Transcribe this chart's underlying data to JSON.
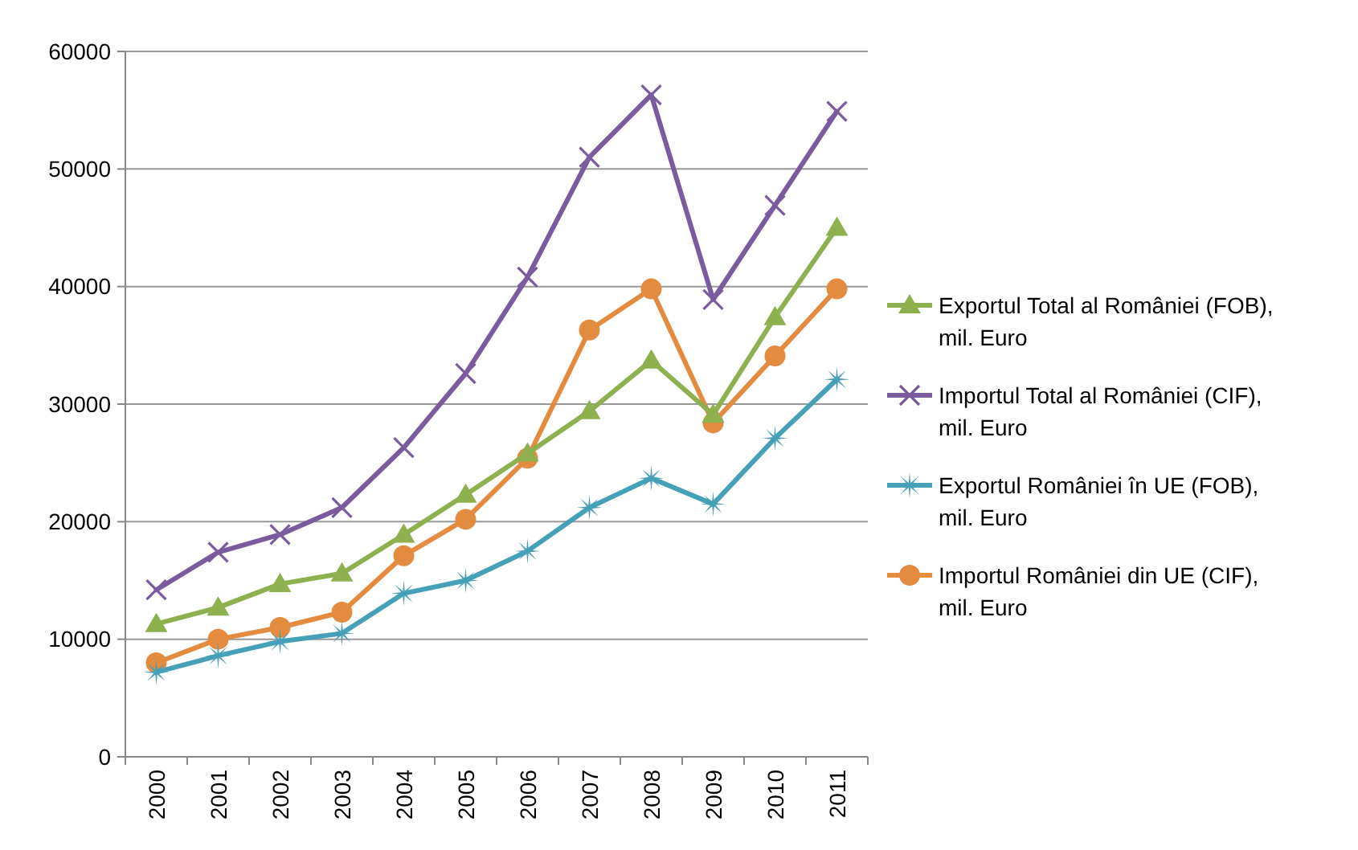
{
  "chart_data": {
    "type": "line",
    "categories": [
      "2000",
      "2001",
      "2002",
      "2003",
      "2004",
      "2005",
      "2006",
      "2007",
      "2008",
      "2009",
      "2010",
      "2011"
    ],
    "series": [
      {
        "name": "Exportul Total al României (FOB), mil. Euro",
        "color": "#8eb04f",
        "marker": "triangle",
        "values": [
          11300,
          12700,
          14700,
          15600,
          18900,
          22300,
          25800,
          29400,
          33700,
          29100,
          37400,
          45000
        ]
      },
      {
        "name": "Importul Total al României (CIF), mil. Euro",
        "color": "#7a5b9e",
        "marker": "cross",
        "values": [
          14200,
          17400,
          18900,
          21200,
          26300,
          32600,
          40800,
          51000,
          56300,
          38900,
          46900,
          54900
        ]
      },
      {
        "name": "Exportul României în UE (FOB), mil. Euro",
        "color": "#45a0b8",
        "marker": "star",
        "values": [
          7200,
          8600,
          9800,
          10500,
          13900,
          15000,
          17500,
          21200,
          23700,
          21500,
          27100,
          32100
        ]
      },
      {
        "name": "Importul României din UE (CIF), mil. Euro",
        "color": "#e38b3f",
        "marker": "circle",
        "values": [
          8000,
          10000,
          11000,
          12300,
          17100,
          20200,
          25400,
          36300,
          39800,
          28400,
          34100,
          39800
        ]
      }
    ],
    "ylim": [
      0,
      60000
    ],
    "yticks": [
      0,
      10000,
      20000,
      30000,
      40000,
      50000,
      60000
    ],
    "grid": "y",
    "legend": "right",
    "line_style": "solid"
  }
}
